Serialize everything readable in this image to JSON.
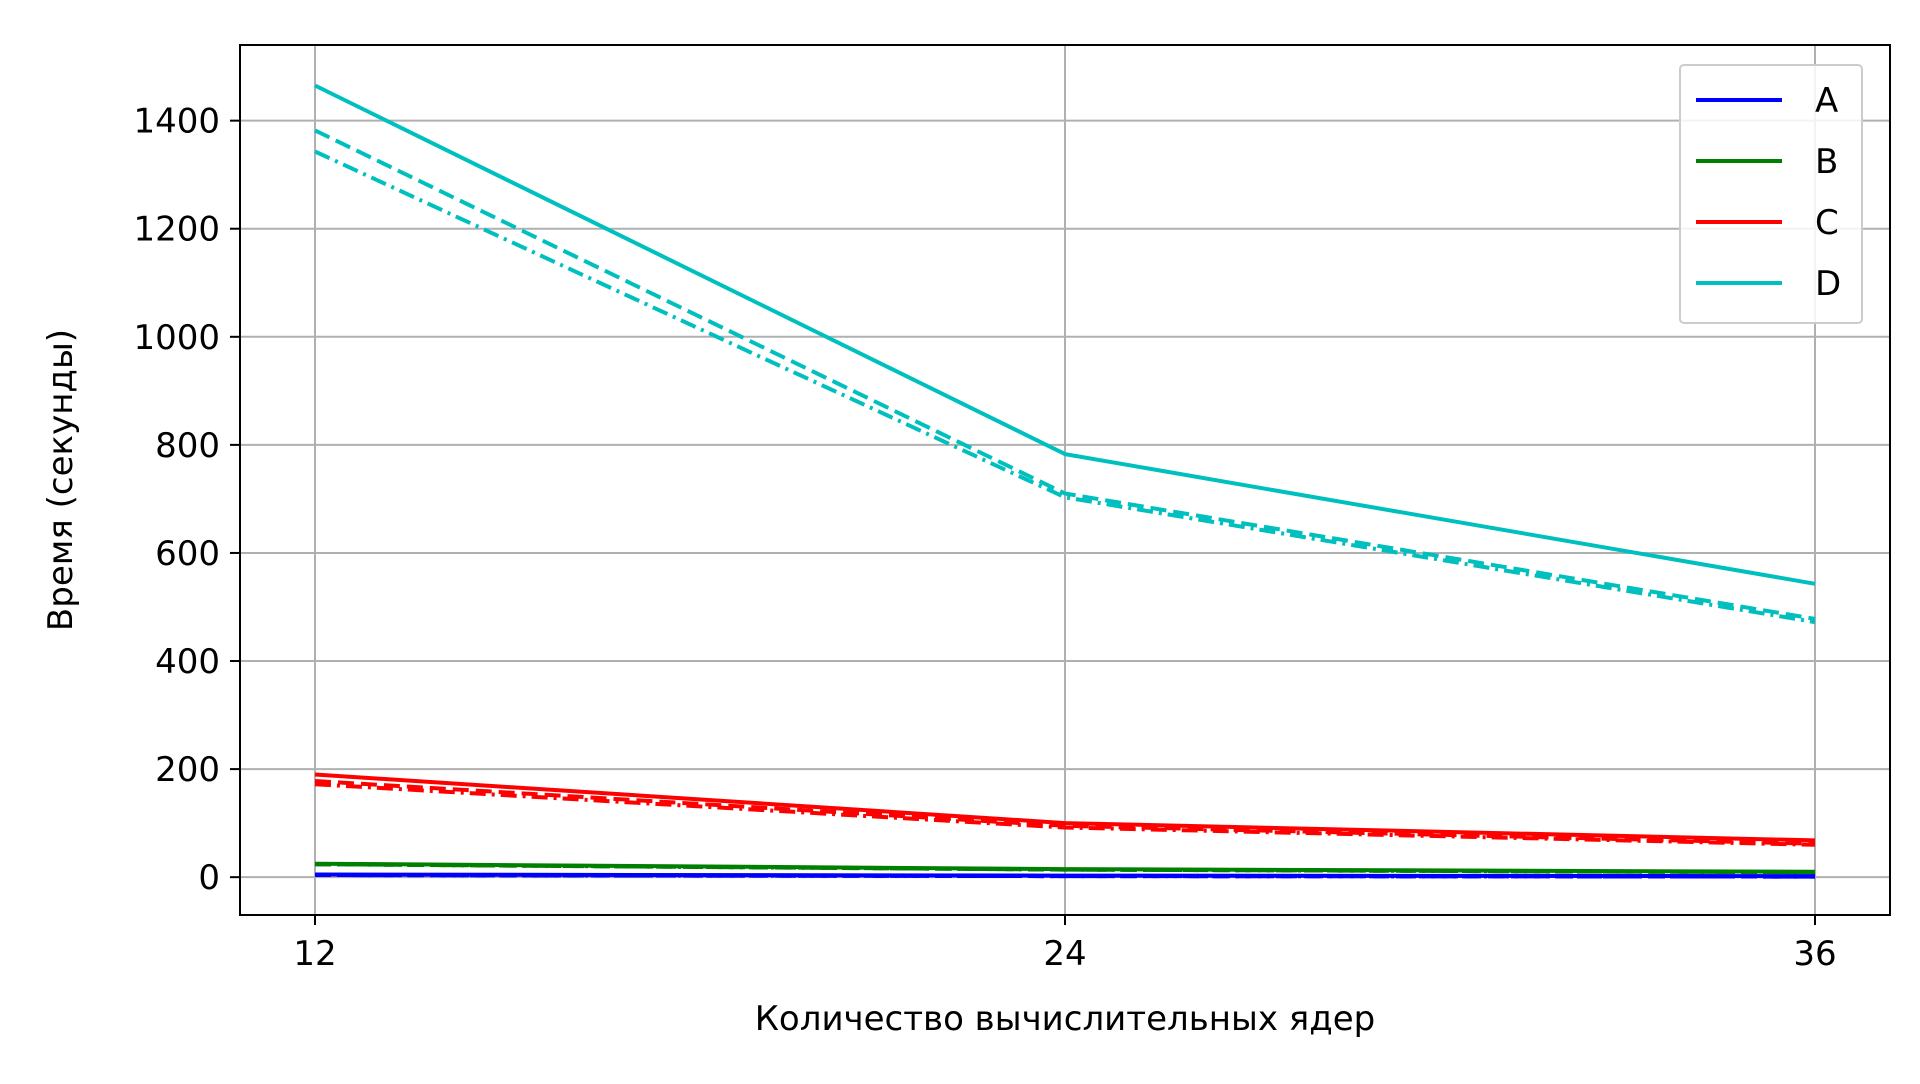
{
  "chart_data": {
    "type": "line",
    "title": "",
    "xlabel": "Количество вычислительных ядер",
    "ylabel": "Время (секунды)",
    "x": [
      12,
      24,
      36
    ],
    "x_ticks": [
      "12",
      "24",
      "36"
    ],
    "xlim": [
      10.8,
      37.2
    ],
    "y_ticks": [
      "0",
      "200",
      "400",
      "600",
      "800",
      "1000",
      "1200",
      "1400"
    ],
    "y_tick_values": [
      0,
      200,
      400,
      600,
      800,
      1000,
      1200,
      1400
    ],
    "ylim": [
      -70,
      1540
    ],
    "grid": true,
    "legend_position": "top-right",
    "legend": [
      {
        "name": "A",
        "color": "#0000ff"
      },
      {
        "name": "B",
        "color": "#008000"
      },
      {
        "name": "C",
        "color": "#ff0000"
      },
      {
        "name": "D",
        "color": "#00bfbf"
      }
    ],
    "series": [
      {
        "group": "A",
        "style": "solid",
        "color": "#0000ff",
        "values": [
          5,
          3,
          2
        ]
      },
      {
        "group": "A",
        "style": "dashed",
        "color": "#0000ff",
        "values": [
          4,
          2,
          1
        ]
      },
      {
        "group": "A",
        "style": "dashdot",
        "color": "#0000ff",
        "values": [
          4,
          2,
          1
        ]
      },
      {
        "group": "B",
        "style": "solid",
        "color": "#008000",
        "values": [
          25,
          15,
          10
        ]
      },
      {
        "group": "B",
        "style": "dashed",
        "color": "#008000",
        "values": [
          24,
          14,
          9
        ]
      },
      {
        "group": "B",
        "style": "dashdot",
        "color": "#008000",
        "values": [
          24,
          14,
          9
        ]
      },
      {
        "group": "C",
        "style": "solid",
        "color": "#ff0000",
        "values": [
          190,
          100,
          68
        ]
      },
      {
        "group": "C",
        "style": "dashed",
        "color": "#ff0000",
        "values": [
          178,
          95,
          62
        ]
      },
      {
        "group": "C",
        "style": "dashdot",
        "color": "#ff0000",
        "values": [
          172,
          92,
          60
        ]
      },
      {
        "group": "D",
        "style": "solid",
        "color": "#00bfbf",
        "values": [
          1465,
          783,
          543
        ]
      },
      {
        "group": "D",
        "style": "dashed",
        "color": "#00bfbf",
        "values": [
          1382,
          710,
          478
        ]
      },
      {
        "group": "D",
        "style": "dashdot",
        "color": "#00bfbf",
        "values": [
          1343,
          703,
          472
        ]
      }
    ]
  }
}
